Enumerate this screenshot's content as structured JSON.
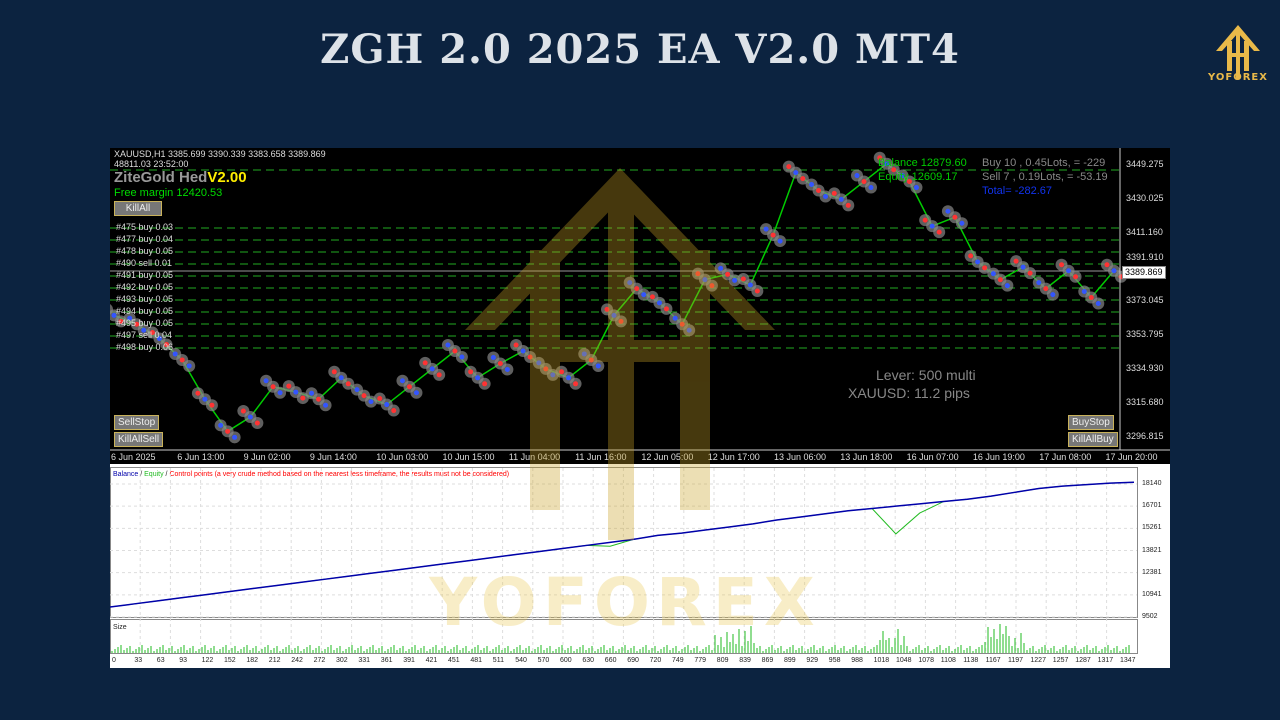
{
  "title": "ZGH 2.0 2025 EA V2.0 MT4",
  "brand": {
    "name": "YOFOREX",
    "color": "#e9b949"
  },
  "chart": {
    "header": "XAUUSD,H1  3385.699 3390.339 3383.658 3389.869",
    "subheader": "48811.03    23:52:00",
    "ea_name": "ZiteGold Hed",
    "ea_version": "V2.00",
    "free_margin": "Free margin 12420.53",
    "balance": "Balance 12879.60",
    "equity": "Equity 12609.17",
    "buy_summary": "Buy 10 , 0.45Lots,  = -229",
    "sell_summary": "Sell 7 , 0.19Lots,  = -53.19",
    "total": "Total= -282.67",
    "lever": "Lever: 500 multi",
    "spread": "XAUUSD: 11.2 pips",
    "buttons": {
      "kill_all": "KillAll",
      "sell_stop": "SellStop",
      "kill_all_sell": "KillAllSell",
      "buy_stop": "BuyStop",
      "kill_all_buy": "KillAllBuy"
    },
    "orders": [
      "#475 buy 0.03",
      "#477 buy 0.04",
      "#478 buy 0.05",
      "#490 sell 0.01",
      "#491 buy 0.05",
      "#492 buy 0.05",
      "#493 buy 0.05",
      "#494 buy 0.05",
      "#495 buy 0.05",
      "#497 sell 0.04",
      "#498 buy 0.06"
    ],
    "price_axis": [
      "3449.275",
      "3430.025",
      "3411.160",
      "3391.910",
      "3373.045",
      "3353.795",
      "3334.930",
      "3315.680",
      "3296.815"
    ],
    "current_price": "3389.869",
    "time_axis": [
      "6 Jun 2025",
      "6 Jun 13:00",
      "9 Jun 02:00",
      "9 Jun 14:00",
      "10 Jun 03:00",
      "10 Jun 15:00",
      "11 Jun 04:00",
      "11 Jun 16:00",
      "12 Jun 05:00",
      "12 Jun 17:00",
      "13 Jun 06:00",
      "13 Jun 18:00",
      "16 Jun 07:00",
      "16 Jun 19:00",
      "17 Jun 08:00",
      "17 Jun 20:00"
    ],
    "price_path": [
      3365,
      3360,
      3352,
      3340,
      3318,
      3300,
      3308,
      3325,
      3322,
      3318,
      3330,
      3320,
      3315,
      3325,
      3335,
      3345,
      3330,
      3338,
      3345,
      3335,
      3330,
      3340,
      3365,
      3380,
      3372,
      3360,
      3385,
      3388,
      3382,
      3410,
      3445,
      3435,
      3430,
      3440,
      3450,
      3440,
      3415,
      3420,
      3395,
      3385,
      3392,
      3380,
      3390,
      3375,
      3390
    ],
    "colors": {
      "buy": "#3355ff",
      "sell": "#ff3333",
      "candle": "#00cc00",
      "level": "#22aa22"
    }
  },
  "tester": {
    "legend": {
      "balance": "Balance",
      "sep1": " / ",
      "equity": "Equity",
      "sep2": " / ",
      "control": "Control points (a very crude method based on the nearest less timeframe, the results must not be considered)"
    },
    "y_axis": [
      "18140",
      "16701",
      "15261",
      "13821",
      "12381",
      "10941",
      "9502"
    ],
    "size_label": "Size",
    "x_axis": [
      "0",
      "33",
      "63",
      "93",
      "122",
      "152",
      "182",
      "212",
      "242",
      "272",
      "302",
      "331",
      "361",
      "391",
      "421",
      "451",
      "481",
      "511",
      "540",
      "570",
      "600",
      "630",
      "660",
      "690",
      "720",
      "749",
      "779",
      "809",
      "839",
      "869",
      "899",
      "929",
      "958",
      "988",
      "1018",
      "1048",
      "1078",
      "1108",
      "1138",
      "1167",
      "1197",
      "1227",
      "1257",
      "1287",
      "1317",
      "1347"
    ],
    "balance_path": [
      10150,
      10350,
      10550,
      10750,
      10950,
      11150,
      11350,
      11550,
      11750,
      11950,
      12150,
      12350,
      12550,
      12750,
      12950,
      13150,
      13350,
      13550,
      13750,
      13950,
      14150,
      14350,
      14550,
      14800,
      14950,
      15150,
      15350,
      15550,
      15800,
      16000,
      16200,
      16400,
      16550,
      16700,
      16850,
      17000,
      17150,
      17350,
      17600,
      17850,
      18000,
      18100,
      18200,
      18250
    ],
    "colors": {
      "balance": "#0000aa",
      "equity": "#22bb22",
      "control": "#ff0000"
    }
  }
}
